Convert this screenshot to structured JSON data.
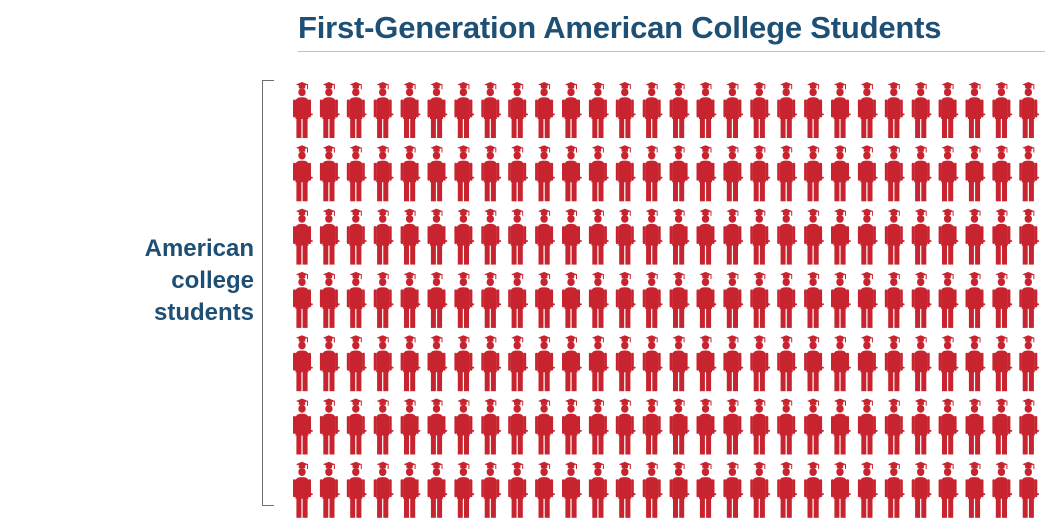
{
  "title": "First-Generation American College Students",
  "group_label": [
    "American",
    "college",
    "students"
  ],
  "colors": {
    "title": "#1e4f74",
    "label": "#1e4f74",
    "icon": "#c8242f",
    "rule": "#b9c2cb",
    "bracket": "#6f6f6f"
  },
  "chart_data": {
    "type": "pictograph",
    "icon": "graduate-figure-icon",
    "rows": 7,
    "columns": 28,
    "count": 196,
    "group": "American college students"
  }
}
